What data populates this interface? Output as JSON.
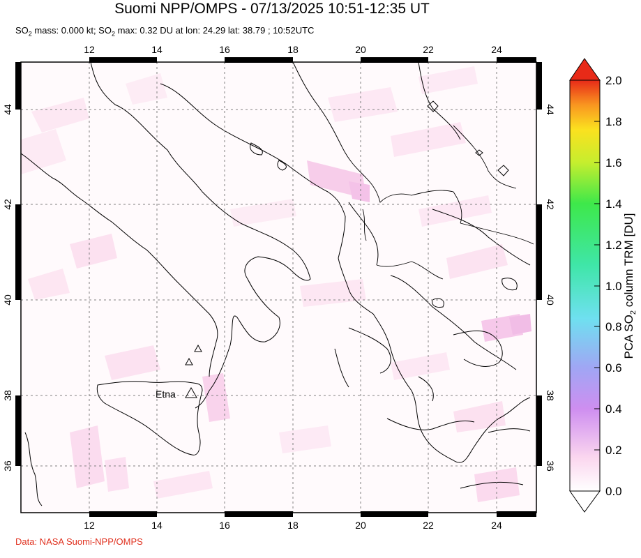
{
  "header": {
    "title": "Suomi NPP/OMPS - 07/13/2025 10:51-12:35 UT",
    "subtitle_p1": "SO",
    "subtitle_p1_sub": "2",
    "subtitle_p2": " mass: 0.000 kt; SO",
    "subtitle_p2_sub": "2",
    "subtitle_p3": " max: 0.32 DU at lon: 24.29 lat: 38.79 ; 10:52UTC"
  },
  "map": {
    "lon_ticks": [
      "12",
      "14",
      "16",
      "18",
      "20",
      "22",
      "24"
    ],
    "lat_ticks": [
      "44",
      "42",
      "40",
      "38",
      "36"
    ],
    "volcano_label": "Etna",
    "colors": {
      "coast": "#000000",
      "grid": "#808080",
      "so2_low": "#fde6f2",
      "so2_mid": "#f6c6ea"
    }
  },
  "colorbar": {
    "labels": [
      "2.0",
      "1.8",
      "1.6",
      "1.4",
      "1.2",
      "1.0",
      "0.8",
      "0.6",
      "0.4",
      "0.2",
      "0.0"
    ],
    "title": "PCA SO",
    "title_sub": "2",
    "title_end": " column TRM [DU]"
  },
  "footer": {
    "credit": "Data: NASA Suomi-NPP/OMPS"
  }
}
